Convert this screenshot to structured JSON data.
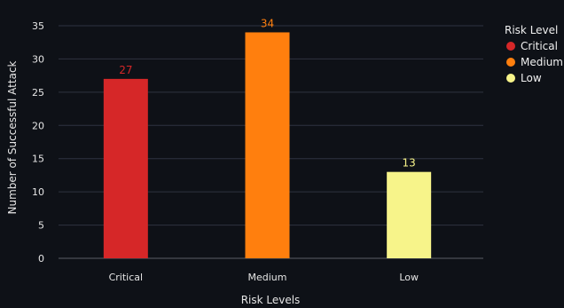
{
  "chart_data": {
    "type": "bar",
    "categories": [
      "Critical",
      "Medium",
      "Low"
    ],
    "values": [
      27,
      34,
      13
    ],
    "colors": [
      "#d62728",
      "#ff7f0e",
      "#f7f48a"
    ],
    "xlabel": "Risk Levels",
    "ylabel": "Number of Successful Attack",
    "ylim": [
      0,
      37
    ],
    "yticks": [
      0,
      5,
      10,
      15,
      20,
      25,
      30,
      35
    ],
    "grid": true,
    "legend": {
      "title": "Risk Level",
      "placement": "right",
      "entries": [
        "Critical",
        "Medium",
        "Low"
      ]
    }
  }
}
